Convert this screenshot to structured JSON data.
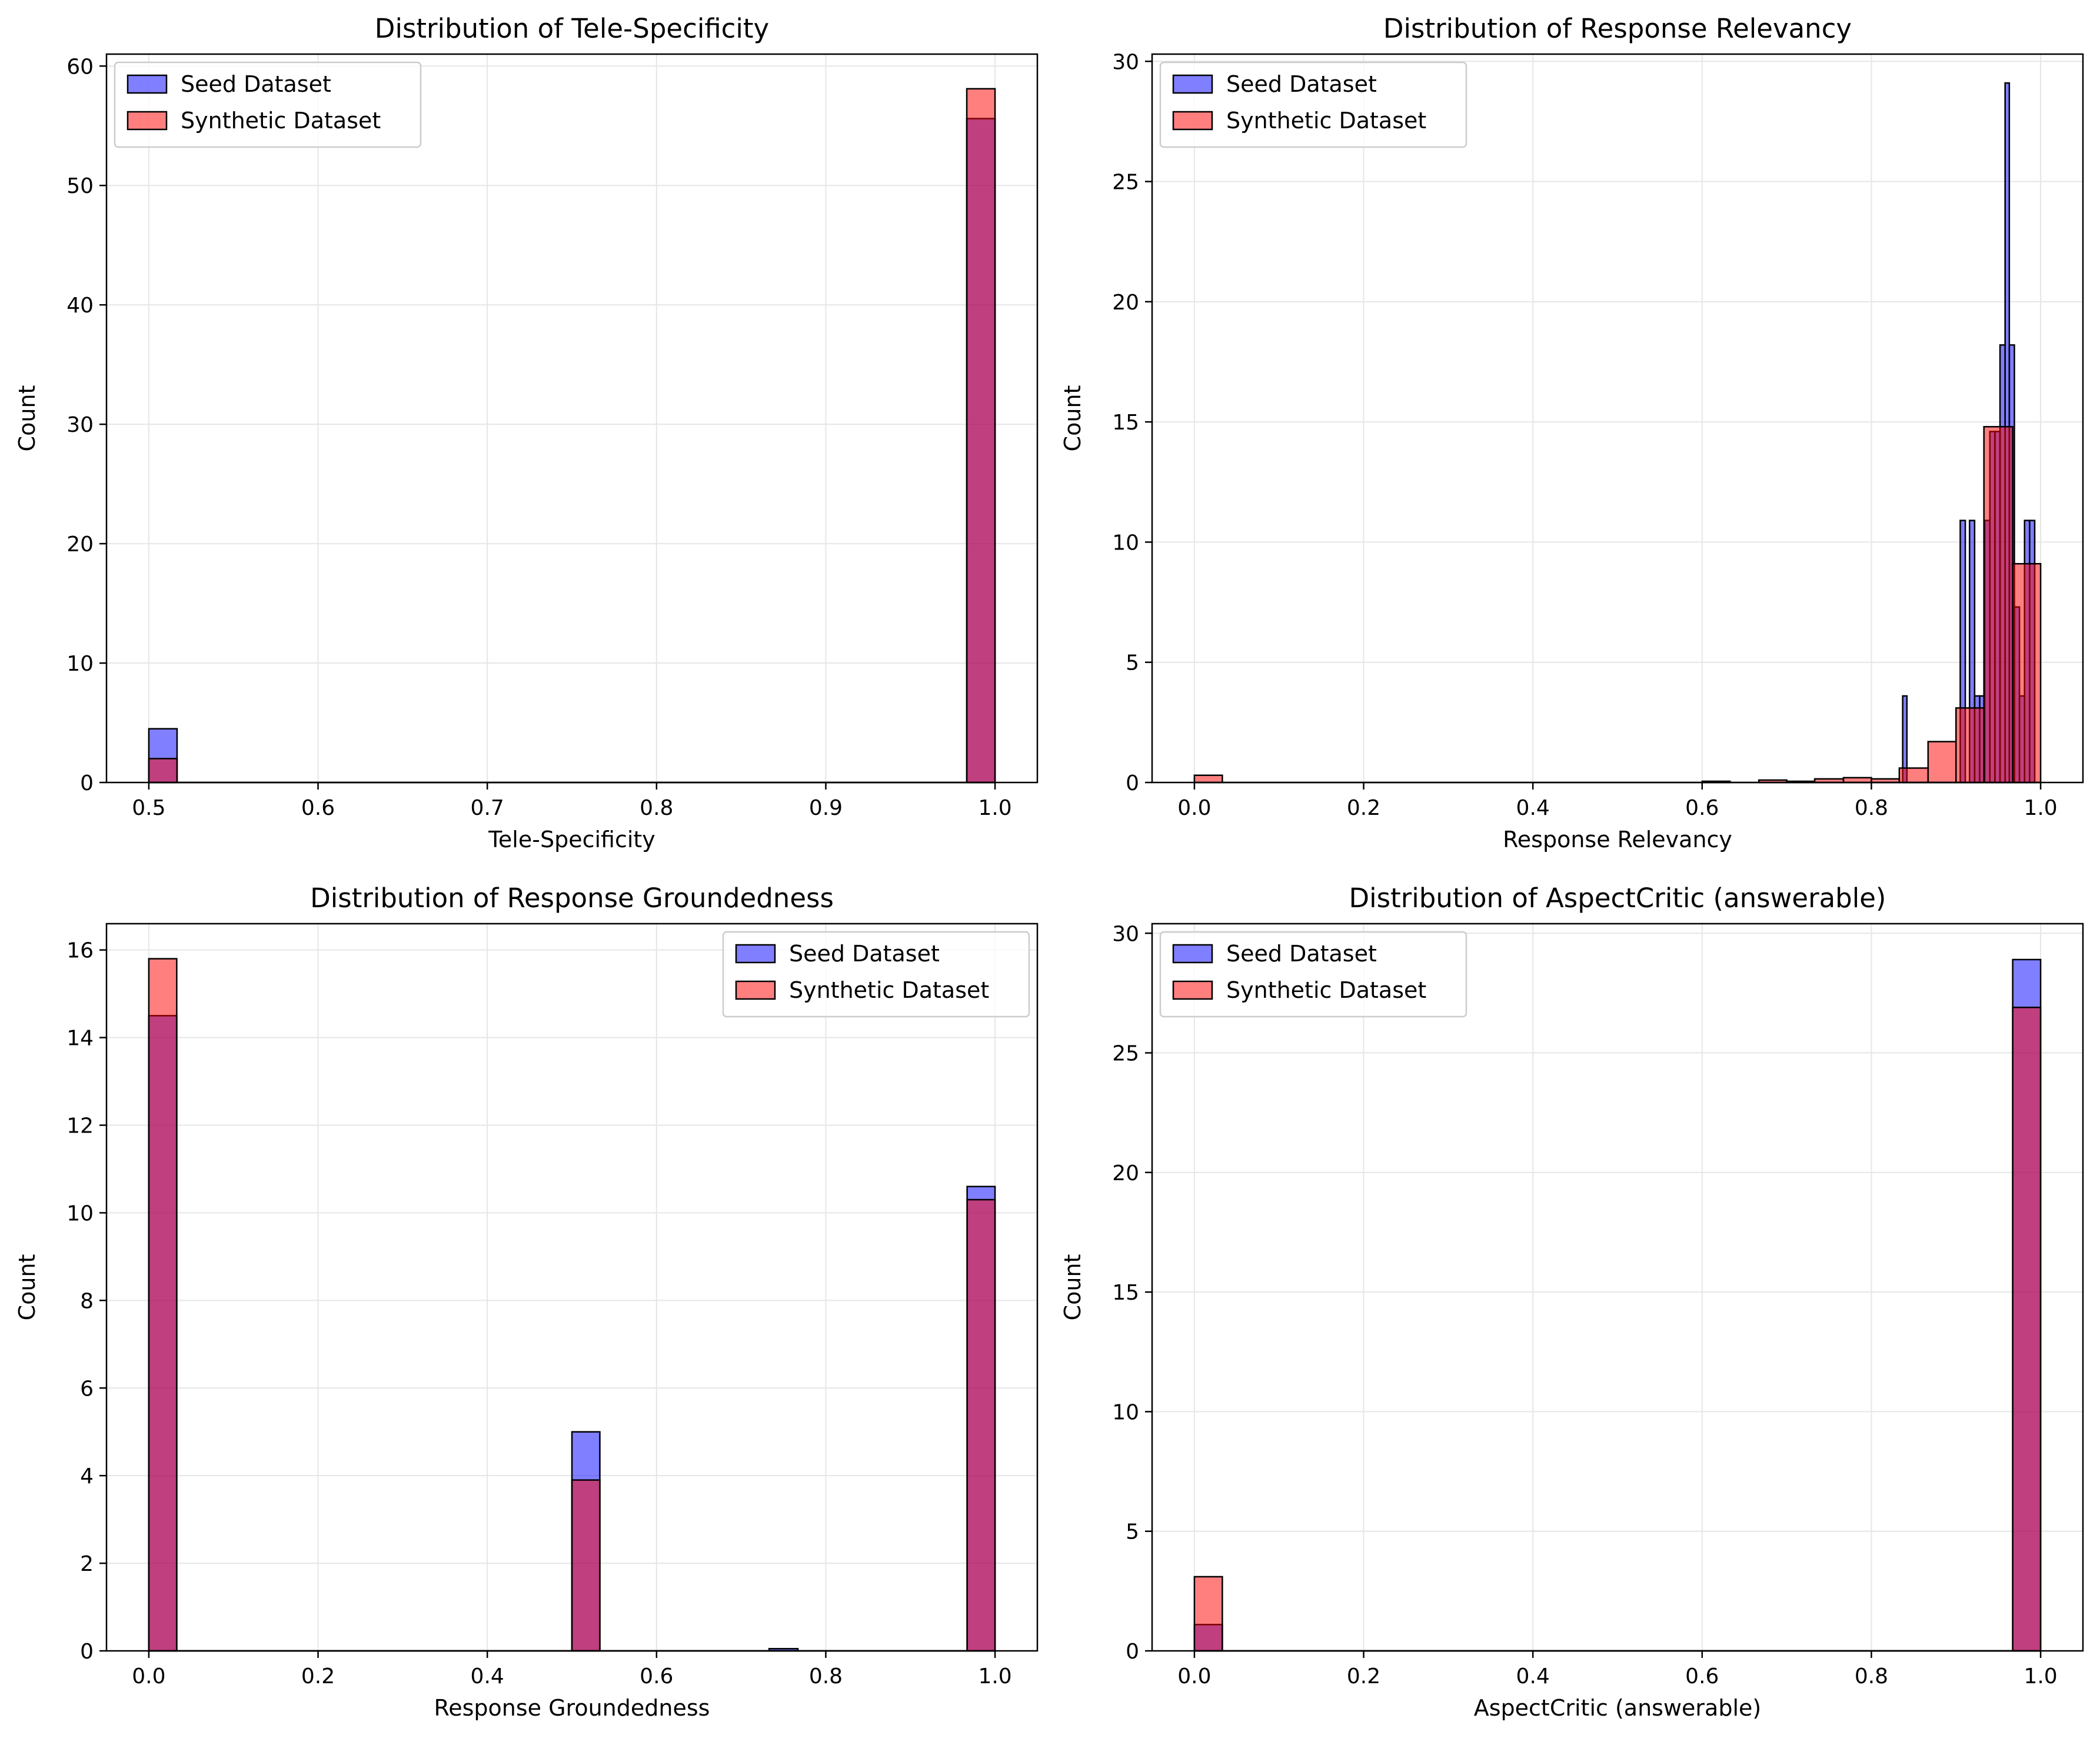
{
  "colors": {
    "seed": "#0000ff",
    "synthetic": "#ff0000",
    "seed_fill": "rgba(0,0,255,0.5)",
    "synthetic_fill": "rgba(255,0,0,0.5)",
    "edge": "#000000",
    "grid": "#e6e6e6"
  },
  "chart_data": [
    {
      "type": "bar",
      "subtype": "overlapping-histogram",
      "title": "Distribution of Tele-Specificity",
      "xlabel": "Tele-Specificity",
      "ylabel": "Count",
      "xlim": [
        0.475,
        1.025
      ],
      "ylim": [
        0,
        61
      ],
      "xticks": [
        0.5,
        0.6,
        0.7,
        0.8,
        0.9,
        1.0
      ],
      "xtick_labels": [
        "0.5",
        "0.6",
        "0.7",
        "0.8",
        "0.9",
        "1.0"
      ],
      "yticks": [
        0,
        10,
        20,
        30,
        40,
        50,
        60
      ],
      "ytick_labels": [
        "0",
        "10",
        "20",
        "30",
        "40",
        "50",
        "60"
      ],
      "grid": true,
      "legend": "top-left",
      "series": [
        {
          "name": "Seed Dataset",
          "bins": [
            [
              0.5,
              0.5167,
              4.5
            ],
            [
              0.9833,
              1.0,
              55.6
            ]
          ],
          "span": [
            0.5,
            1.0
          ]
        },
        {
          "name": "Synthetic Dataset",
          "bins": [
            [
              0.5,
              0.5167,
              2.0
            ],
            [
              0.9833,
              1.0,
              58.1
            ]
          ],
          "span": [
            0.5,
            1.0
          ]
        }
      ]
    },
    {
      "type": "bar",
      "subtype": "overlapping-histogram",
      "title": "Distribution of Response Relevancy",
      "xlabel": "Response Relevancy",
      "ylabel": "Count",
      "xlim": [
        -0.05,
        1.05
      ],
      "ylim": [
        0,
        30.3
      ],
      "xticks": [
        0.0,
        0.2,
        0.4,
        0.6,
        0.8,
        1.0
      ],
      "xtick_labels": [
        "0.0",
        "0.2",
        "0.4",
        "0.6",
        "0.8",
        "1.0"
      ],
      "yticks": [
        0,
        5,
        10,
        15,
        20,
        25,
        30
      ],
      "ytick_labels": [
        "0",
        "5",
        "10",
        "15",
        "20",
        "25",
        "30"
      ],
      "grid": true,
      "legend": "top-left",
      "series": [
        {
          "name": "Seed Dataset",
          "bins": [
            [
              0.837,
              0.842,
              3.6
            ],
            [
              0.905,
              0.911,
              10.9
            ],
            [
              0.916,
              0.922,
              10.9
            ],
            [
              0.922,
              0.928,
              3.6
            ],
            [
              0.928,
              0.934,
              3.6
            ],
            [
              0.934,
              0.94,
              10.9
            ],
            [
              0.94,
              0.946,
              14.6
            ],
            [
              0.946,
              0.952,
              14.6
            ],
            [
              0.952,
              0.958,
              18.2
            ],
            [
              0.958,
              0.963,
              29.1
            ],
            [
              0.963,
              0.969,
              18.2
            ],
            [
              0.969,
              0.975,
              7.3
            ],
            [
              0.975,
              0.981,
              3.6
            ],
            [
              0.981,
              0.987,
              10.9
            ],
            [
              0.987,
              0.993,
              10.9
            ]
          ],
          "span": [
            0.837,
            0.993
          ]
        },
        {
          "name": "Synthetic Dataset",
          "bins": [
            [
              0.0,
              0.033,
              0.3
            ],
            [
              0.6,
              0.633,
              0.05
            ],
            [
              0.667,
              0.7,
              0.1
            ],
            [
              0.7,
              0.733,
              0.05
            ],
            [
              0.733,
              0.767,
              0.15
            ],
            [
              0.767,
              0.8,
              0.2
            ],
            [
              0.8,
              0.833,
              0.15
            ],
            [
              0.833,
              0.867,
              0.6
            ],
            [
              0.867,
              0.9,
              1.7
            ],
            [
              0.9,
              0.933,
              3.1
            ],
            [
              0.933,
              0.967,
              14.8
            ],
            [
              0.967,
              1.0,
              9.1
            ]
          ],
          "span": [
            0.0,
            1.0
          ]
        }
      ]
    },
    {
      "type": "bar",
      "subtype": "overlapping-histogram",
      "title": "Distribution of Response Groundedness",
      "xlabel": "Response Groundedness",
      "ylabel": "Count",
      "xlim": [
        -0.05,
        1.05
      ],
      "ylim": [
        0,
        16.6
      ],
      "xticks": [
        0.0,
        0.2,
        0.4,
        0.6,
        0.8,
        1.0
      ],
      "xtick_labels": [
        "0.0",
        "0.2",
        "0.4",
        "0.6",
        "0.8",
        "1.0"
      ],
      "yticks": [
        0,
        2,
        4,
        6,
        8,
        10,
        12,
        14,
        16
      ],
      "ytick_labels": [
        "0",
        "2",
        "4",
        "6",
        "8",
        "10",
        "12",
        "14",
        "16"
      ],
      "grid": true,
      "legend": "top-right",
      "series": [
        {
          "name": "Seed Dataset",
          "bins": [
            [
              0.0,
              0.033,
              14.5
            ],
            [
              0.5,
              0.533,
              5.0
            ],
            [
              0.733,
              0.767,
              0.05
            ],
            [
              0.967,
              1.0,
              10.6
            ]
          ],
          "span": [
            0.0,
            1.0
          ]
        },
        {
          "name": "Synthetic Dataset",
          "bins": [
            [
              0.0,
              0.033,
              15.8
            ],
            [
              0.5,
              0.533,
              3.9
            ],
            [
              0.967,
              1.0,
              10.3
            ]
          ],
          "span": [
            0.0,
            1.0
          ]
        }
      ]
    },
    {
      "type": "bar",
      "subtype": "overlapping-histogram",
      "title": "Distribution of AspectCritic (answerable)",
      "xlabel": "AspectCritic (answerable)",
      "ylabel": "Count",
      "xlim": [
        -0.05,
        1.05
      ],
      "ylim": [
        0,
        30.4
      ],
      "xticks": [
        0.0,
        0.2,
        0.4,
        0.6,
        0.8,
        1.0
      ],
      "xtick_labels": [
        "0.0",
        "0.2",
        "0.4",
        "0.6",
        "0.8",
        "1.0"
      ],
      "yticks": [
        0,
        5,
        10,
        15,
        20,
        25,
        30
      ],
      "ytick_labels": [
        "0",
        "5",
        "10",
        "15",
        "20",
        "25",
        "30"
      ],
      "grid": true,
      "legend": "top-left",
      "series": [
        {
          "name": "Seed Dataset",
          "bins": [
            [
              0.0,
              0.033,
              1.1
            ],
            [
              0.967,
              1.0,
              28.9
            ]
          ],
          "span": [
            0.0,
            1.0
          ]
        },
        {
          "name": "Synthetic Dataset",
          "bins": [
            [
              0.0,
              0.033,
              3.1
            ],
            [
              0.967,
              1.0,
              26.9
            ]
          ],
          "span": [
            0.0,
            1.0
          ]
        }
      ]
    }
  ]
}
